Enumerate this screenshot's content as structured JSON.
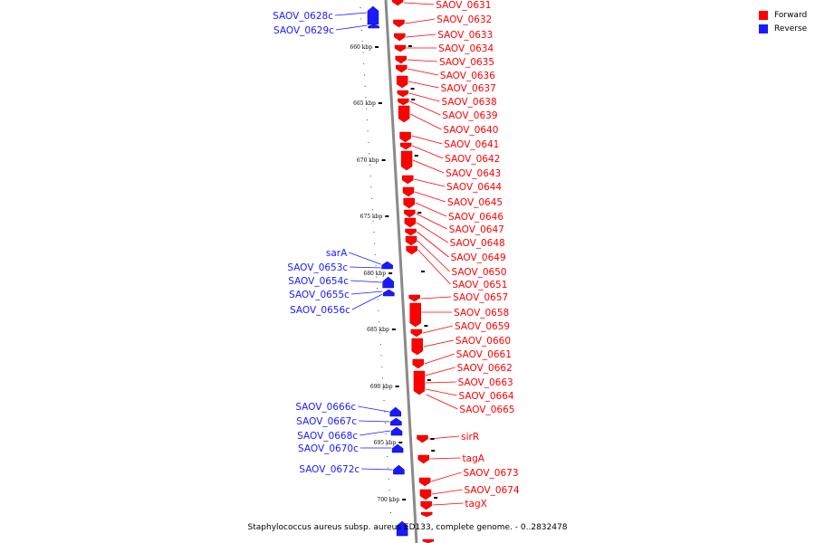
{
  "caption": "Staphylococcus aureus subsp. aureus ED133, complete genome. - 0..2832478",
  "legend": {
    "forward": {
      "label": "Forward",
      "color": "#ff0000"
    },
    "reverse": {
      "label": "Reverse",
      "color": "#1a1aff"
    }
  },
  "axis_ticks": [
    "660 kbp",
    "665 kbp",
    "670 kbp",
    "675 kbp",
    "680 kbp",
    "685 kbp",
    "690 kbp",
    "695 kbp",
    "700 kbp"
  ],
  "forward_genes": [
    "SAOV_0631",
    "SAOV_0632",
    "SAOV_0633",
    "SAOV_0634",
    "SAOV_0635",
    "SAOV_0636",
    "SAOV_0637",
    "SAOV_0638",
    "SAOV_0639",
    "SAOV_0640",
    "SAOV_0641",
    "SAOV_0642",
    "SAOV_0643",
    "SAOV_0644",
    "SAOV_0645",
    "SAOV_0646",
    "SAOV_0647",
    "SAOV_0648",
    "SAOV_0649",
    "SAOV_0650",
    "SAOV_0651",
    "SAOV_0657",
    "SAOV_0658",
    "SAOV_0659",
    "SAOV_0660",
    "SAOV_0661",
    "SAOV_0662",
    "SAOV_0663",
    "SAOV_0664",
    "SAOV_0665",
    "sirR",
    "tagA",
    "SAOV_0673",
    "SAOV_0674",
    "tagX"
  ],
  "reverse_genes": [
    "SAOV_0628c",
    "SAOV_0629c",
    "sarA",
    "SAOV_0653c",
    "SAOV_0654c",
    "SAOV_0655c",
    "SAOV_0656c",
    "SAOV_0666c",
    "SAOV_0667c",
    "SAOV_0668c",
    "SAOV_0670c",
    "SAOV_0672c"
  ]
}
